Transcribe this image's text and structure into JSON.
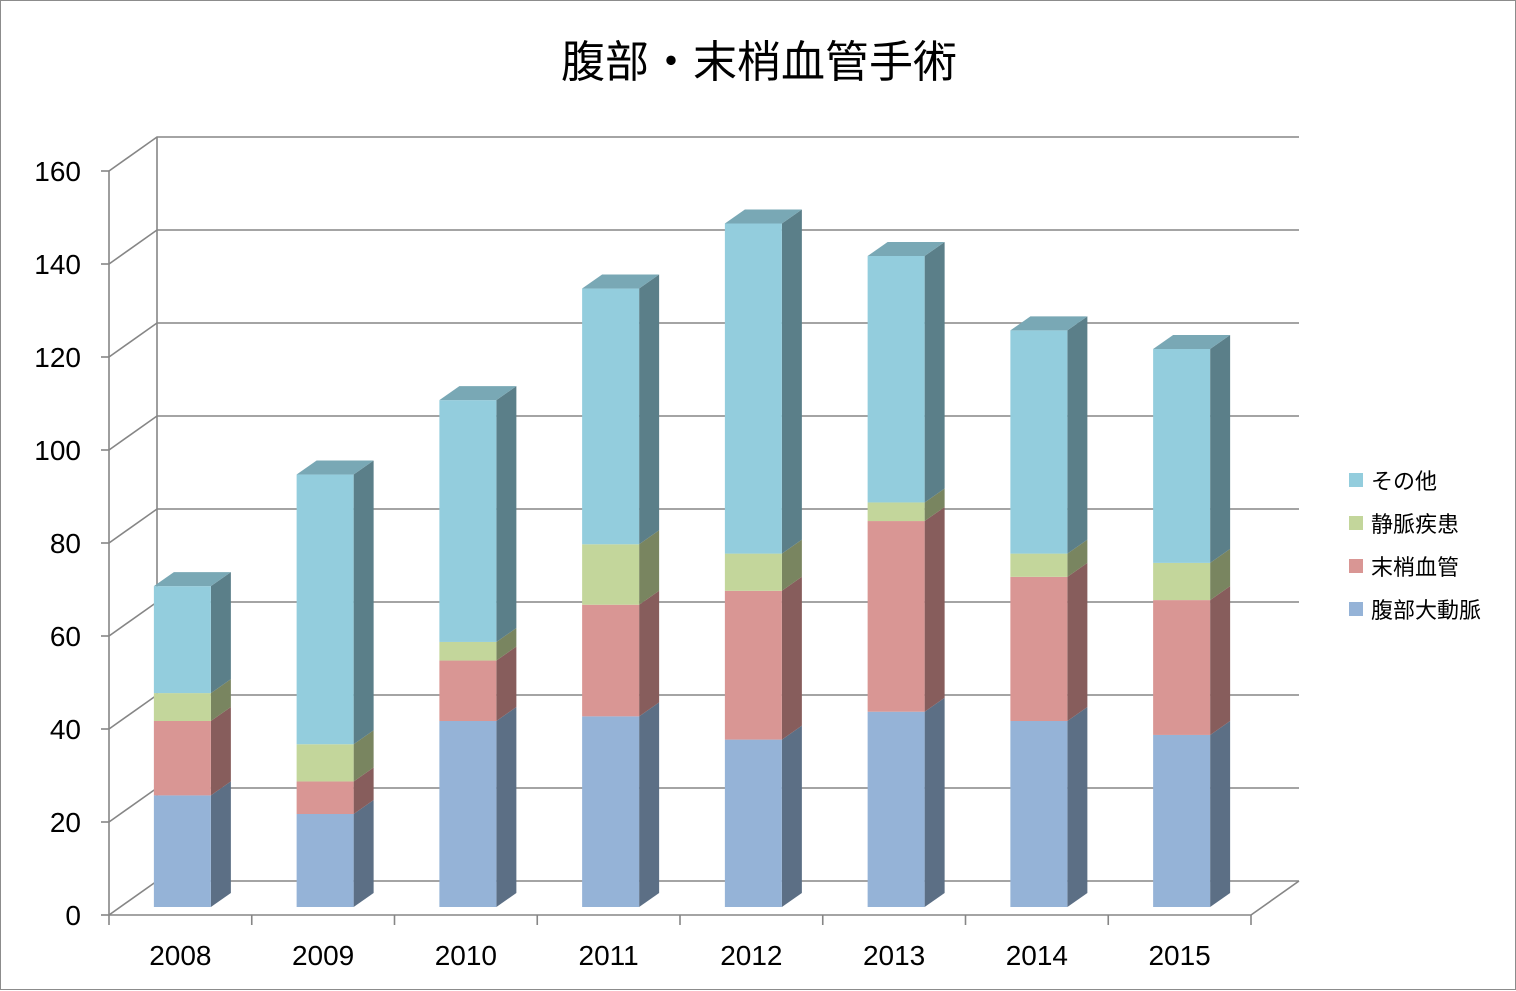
{
  "chart_data": {
    "type": "bar",
    "stacked": true,
    "style_3d": true,
    "title": "腹部・末梢血管手術",
    "categories": [
      "2008",
      "2009",
      "2010",
      "2011",
      "2012",
      "2013",
      "2014",
      "2015"
    ],
    "series": [
      {
        "name": "腹部大動脈",
        "color": "#95B3D7",
        "values": [
          24,
          20,
          40,
          41,
          36,
          42,
          40,
          37
        ]
      },
      {
        "name": "末梢血管",
        "color": "#D99694",
        "values": [
          16,
          7,
          13,
          24,
          32,
          41,
          31,
          29
        ]
      },
      {
        "name": "静脈疾患",
        "color": "#C3D69B",
        "values": [
          6,
          8,
          4,
          13,
          8,
          4,
          5,
          8
        ]
      },
      {
        "name": "その他",
        "color": "#93CDDD",
        "values": [
          23,
          58,
          52,
          55,
          71,
          53,
          48,
          46
        ]
      }
    ],
    "yticks": [
      "0",
      "20",
      "40",
      "60",
      "80",
      "100",
      "120",
      "140",
      "160"
    ],
    "ylim": [
      0,
      160
    ],
    "grid": true,
    "legend_position": "right"
  }
}
